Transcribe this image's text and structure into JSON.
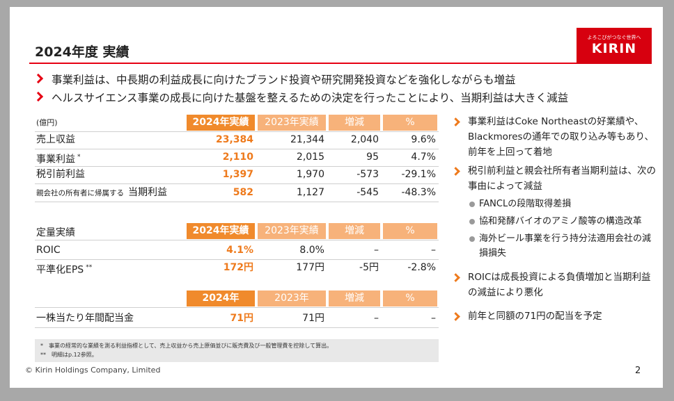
{
  "header": {
    "title": "2024年度 実績",
    "logo": {
      "tagline": "よろこびがつなぐ世界へ",
      "name": "KIRIN"
    }
  },
  "highlights": [
    "事業利益は、中長期の利益成長に向けたブランド投資や研究開発投資などを強化しながらも増益",
    "ヘルスサイエンス事業の成長に向けた基盤を整えるための決定を行ったことにより、当期利益は大きく減益"
  ],
  "tables": [
    {
      "label_header": "(億円)",
      "columns": [
        "2024年実績",
        "2023年実績",
        "増減",
        "%"
      ],
      "rows": [
        {
          "label": "売上収益",
          "cells": [
            "23,384",
            "21,344",
            "2,040",
            "9.6%"
          ]
        },
        {
          "label": "事業利益",
          "note": "*",
          "cells": [
            "2,110",
            "2,015",
            "95",
            "4.7%"
          ]
        },
        {
          "label": "税引前利益",
          "cells": [
            "1,397",
            "1,970",
            "-573",
            "-29.1%"
          ]
        },
        {
          "prefix": "親会社の所有者に帰属する",
          "label": "当期利益",
          "cells": [
            "582",
            "1,127",
            "-545",
            "-48.3%"
          ]
        }
      ]
    },
    {
      "label_header": "定量実績",
      "columns": [
        "2024年実績",
        "2023年実績",
        "増減",
        "%"
      ],
      "rows": [
        {
          "label": "ROIC",
          "cells": [
            "4.1%",
            "8.0%",
            "–",
            "–"
          ]
        },
        {
          "label": "平準化EPS",
          "note": "**",
          "cells": [
            "172円",
            "177円",
            "-5円",
            "-2.8%"
          ]
        }
      ]
    },
    {
      "columns": [
        "2024年",
        "2023年",
        "増減",
        "%"
      ],
      "rows": [
        {
          "label": "一株当たり年間配当金",
          "cells": [
            "71円",
            "71円",
            "–",
            "–"
          ]
        }
      ]
    }
  ],
  "notes": [
    "*　事業の経常的な業績を測る利益指標として、売上収益から売上原価並びに販売費及び一般管理費を控除して算出。",
    "**　明細はp.12参照。"
  ],
  "commentary": [
    {
      "text": "事業利益はCoke Northeastの好業績や、Blackmoresの通年での取り込み等もあり、前年を上回って着地"
    },
    {
      "text": "税引前利益と親会社所有者当期利益は、次の事由によって減益",
      "subitems": [
        "FANCLの段階取得差損",
        "協和発酵バイオのアミノ酸等の構造改革",
        "海外ビール事業を行う持分法適用会社の減損損失"
      ]
    },
    {
      "text": "ROICは成長投資による負債増加と当期利益の減益により悪化"
    },
    {
      "text": "前年と同額の71円の配当を予定"
    }
  ],
  "footer": {
    "copyright": "© Kirin Holdings Company, Limited",
    "page": "2"
  }
}
